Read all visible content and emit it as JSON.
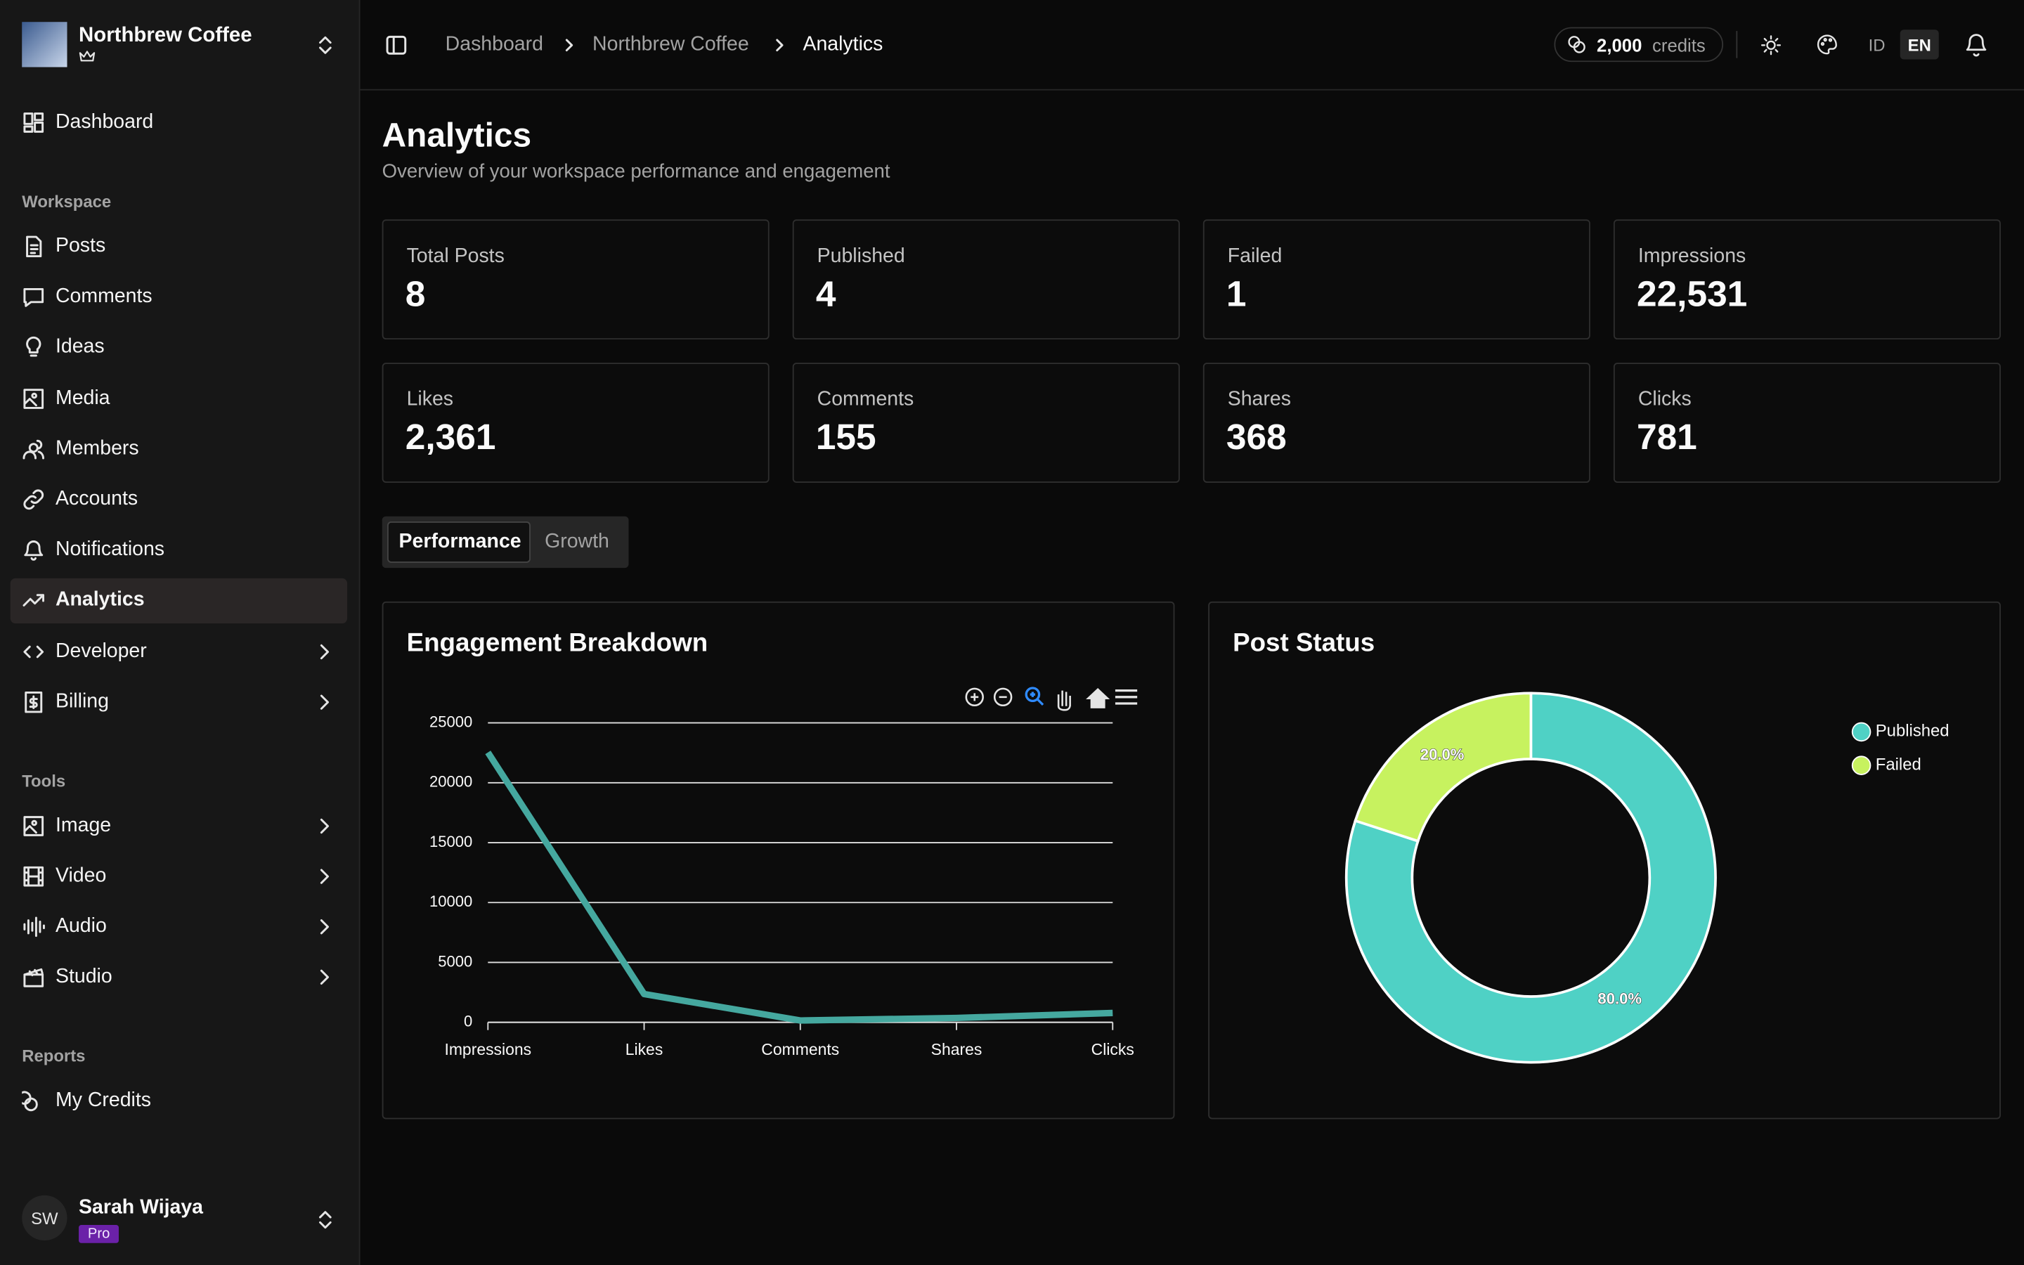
{
  "sidebar": {
    "workspace_name": "Northbrew Coffee",
    "dashboard": "Dashboard",
    "sections": [
      {
        "title": "Workspace",
        "items": [
          {
            "label": "Posts"
          },
          {
            "label": "Comments"
          },
          {
            "label": "Ideas"
          },
          {
            "label": "Media"
          },
          {
            "label": "Members"
          },
          {
            "label": "Accounts"
          },
          {
            "label": "Notifications"
          },
          {
            "label": "Analytics",
            "active": true
          },
          {
            "label": "Developer",
            "submenu": true
          },
          {
            "label": "Billing",
            "submenu": true
          }
        ]
      },
      {
        "title": "Tools",
        "items": [
          {
            "label": "Image",
            "submenu": true
          },
          {
            "label": "Video",
            "submenu": true
          },
          {
            "label": "Audio",
            "submenu": true
          },
          {
            "label": "Studio",
            "submenu": true
          }
        ]
      },
      {
        "title": "Reports",
        "items": [
          {
            "label": "My Credits"
          }
        ]
      }
    ],
    "user": {
      "initials": "SW",
      "name": "Sarah Wijaya",
      "plan": "Pro"
    }
  },
  "header": {
    "breadcrumbs": [
      "Dashboard",
      "Northbrew Coffee",
      "Analytics"
    ],
    "credits_amount": "2,000",
    "credits_unit": "credits",
    "languages": [
      "ID",
      "EN"
    ]
  },
  "page": {
    "title": "Analytics",
    "subtitle": "Overview of your workspace performance and engagement"
  },
  "stats": [
    {
      "label": "Total Posts",
      "value": "8"
    },
    {
      "label": "Published",
      "value": "4"
    },
    {
      "label": "Failed",
      "value": "1"
    },
    {
      "label": "Impressions",
      "value": "22,531"
    },
    {
      "label": "Likes",
      "value": "2,361"
    },
    {
      "label": "Comments",
      "value": "155"
    },
    {
      "label": "Shares",
      "value": "368"
    },
    {
      "label": "Clicks",
      "value": "781"
    }
  ],
  "tabs": [
    "Performance",
    "Growth"
  ],
  "chart_data": [
    {
      "type": "line",
      "title": "Engagement Breakdown",
      "categories": [
        "Impressions",
        "Likes",
        "Comments",
        "Shares",
        "Clicks"
      ],
      "values": [
        22531,
        2361,
        155,
        368,
        781
      ],
      "color": "#45a89f",
      "ylim": [
        0,
        25000
      ],
      "yticks": [
        0,
        5000,
        10000,
        15000,
        20000,
        25000
      ],
      "grid": true
    },
    {
      "type": "donut",
      "title": "Post Status",
      "categories": [
        "Published",
        "Failed"
      ],
      "values": [
        80,
        20
      ],
      "value_labels": [
        "80.0%",
        "20.0%"
      ],
      "colors": [
        "#4fd1c5",
        "#c7f25f"
      ],
      "legend": "top-right"
    }
  ]
}
